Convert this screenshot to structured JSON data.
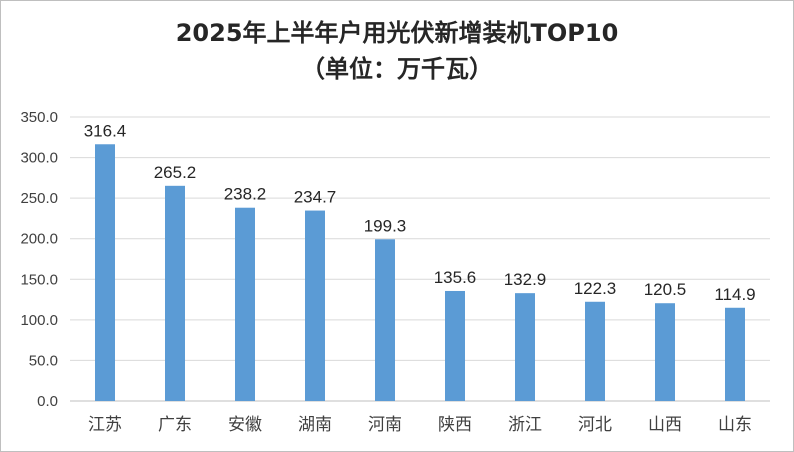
{
  "chart_data": {
    "type": "bar",
    "title_line1": "2025年上半年户用光伏新增装机TOP10",
    "title_line2": "（单位：万千瓦）",
    "categories": [
      "江苏",
      "广东",
      "安徽",
      "湖南",
      "河南",
      "陕西",
      "浙江",
      "河北",
      "山西",
      "山东"
    ],
    "values": [
      316.4,
      265.2,
      238.2,
      234.7,
      199.3,
      135.6,
      132.9,
      122.3,
      120.5,
      114.9
    ],
    "value_labels": [
      "316.4",
      "265.2",
      "238.2",
      "234.7",
      "199.3",
      "135.6",
      "132.9",
      "122.3",
      "120.5",
      "114.9"
    ],
    "y_ticks": [
      "0.0",
      "50.0",
      "100.0",
      "150.0",
      "200.0",
      "250.0",
      "300.0",
      "350.0"
    ],
    "ylim": [
      0,
      350
    ],
    "ystep": 50,
    "grid": true,
    "bar_color": "#5b9bd5",
    "grid_color": "#d9d9d9"
  }
}
